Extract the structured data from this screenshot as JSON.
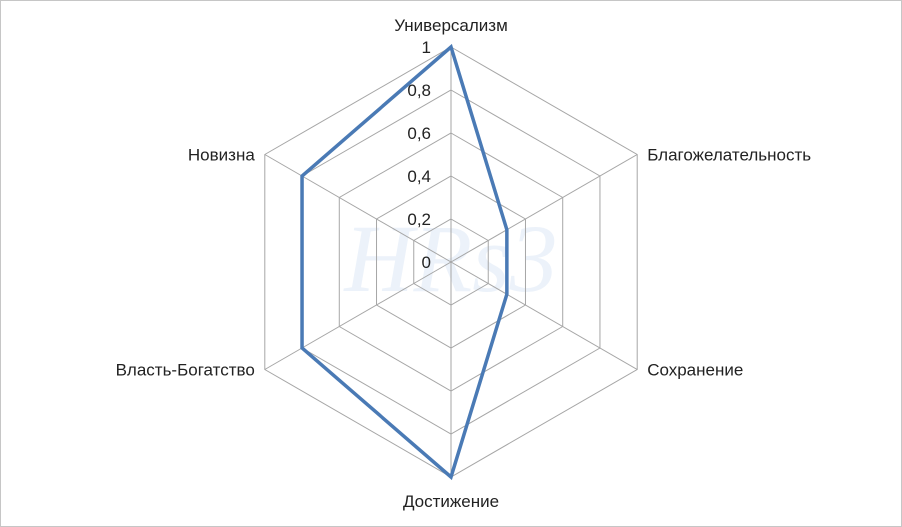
{
  "watermark": "HRs3",
  "chart_data": {
    "type": "radar",
    "title": "",
    "categories": [
      "Универсализм",
      "Благожелательность",
      "Сохранение",
      "Достижение",
      "Власть-Богатство",
      "Новизна"
    ],
    "ticks": [
      "0",
      "0,2",
      "0,4",
      "0,6",
      "0,8",
      "1"
    ],
    "rlim": [
      0,
      1
    ],
    "grid": true,
    "series": [
      {
        "values": [
          1.0,
          0.3,
          0.3,
          1.0,
          0.8,
          0.8
        ]
      }
    ],
    "colors": {
      "series": "#4a7ab5",
      "grid": "#a6a6a6"
    }
  }
}
